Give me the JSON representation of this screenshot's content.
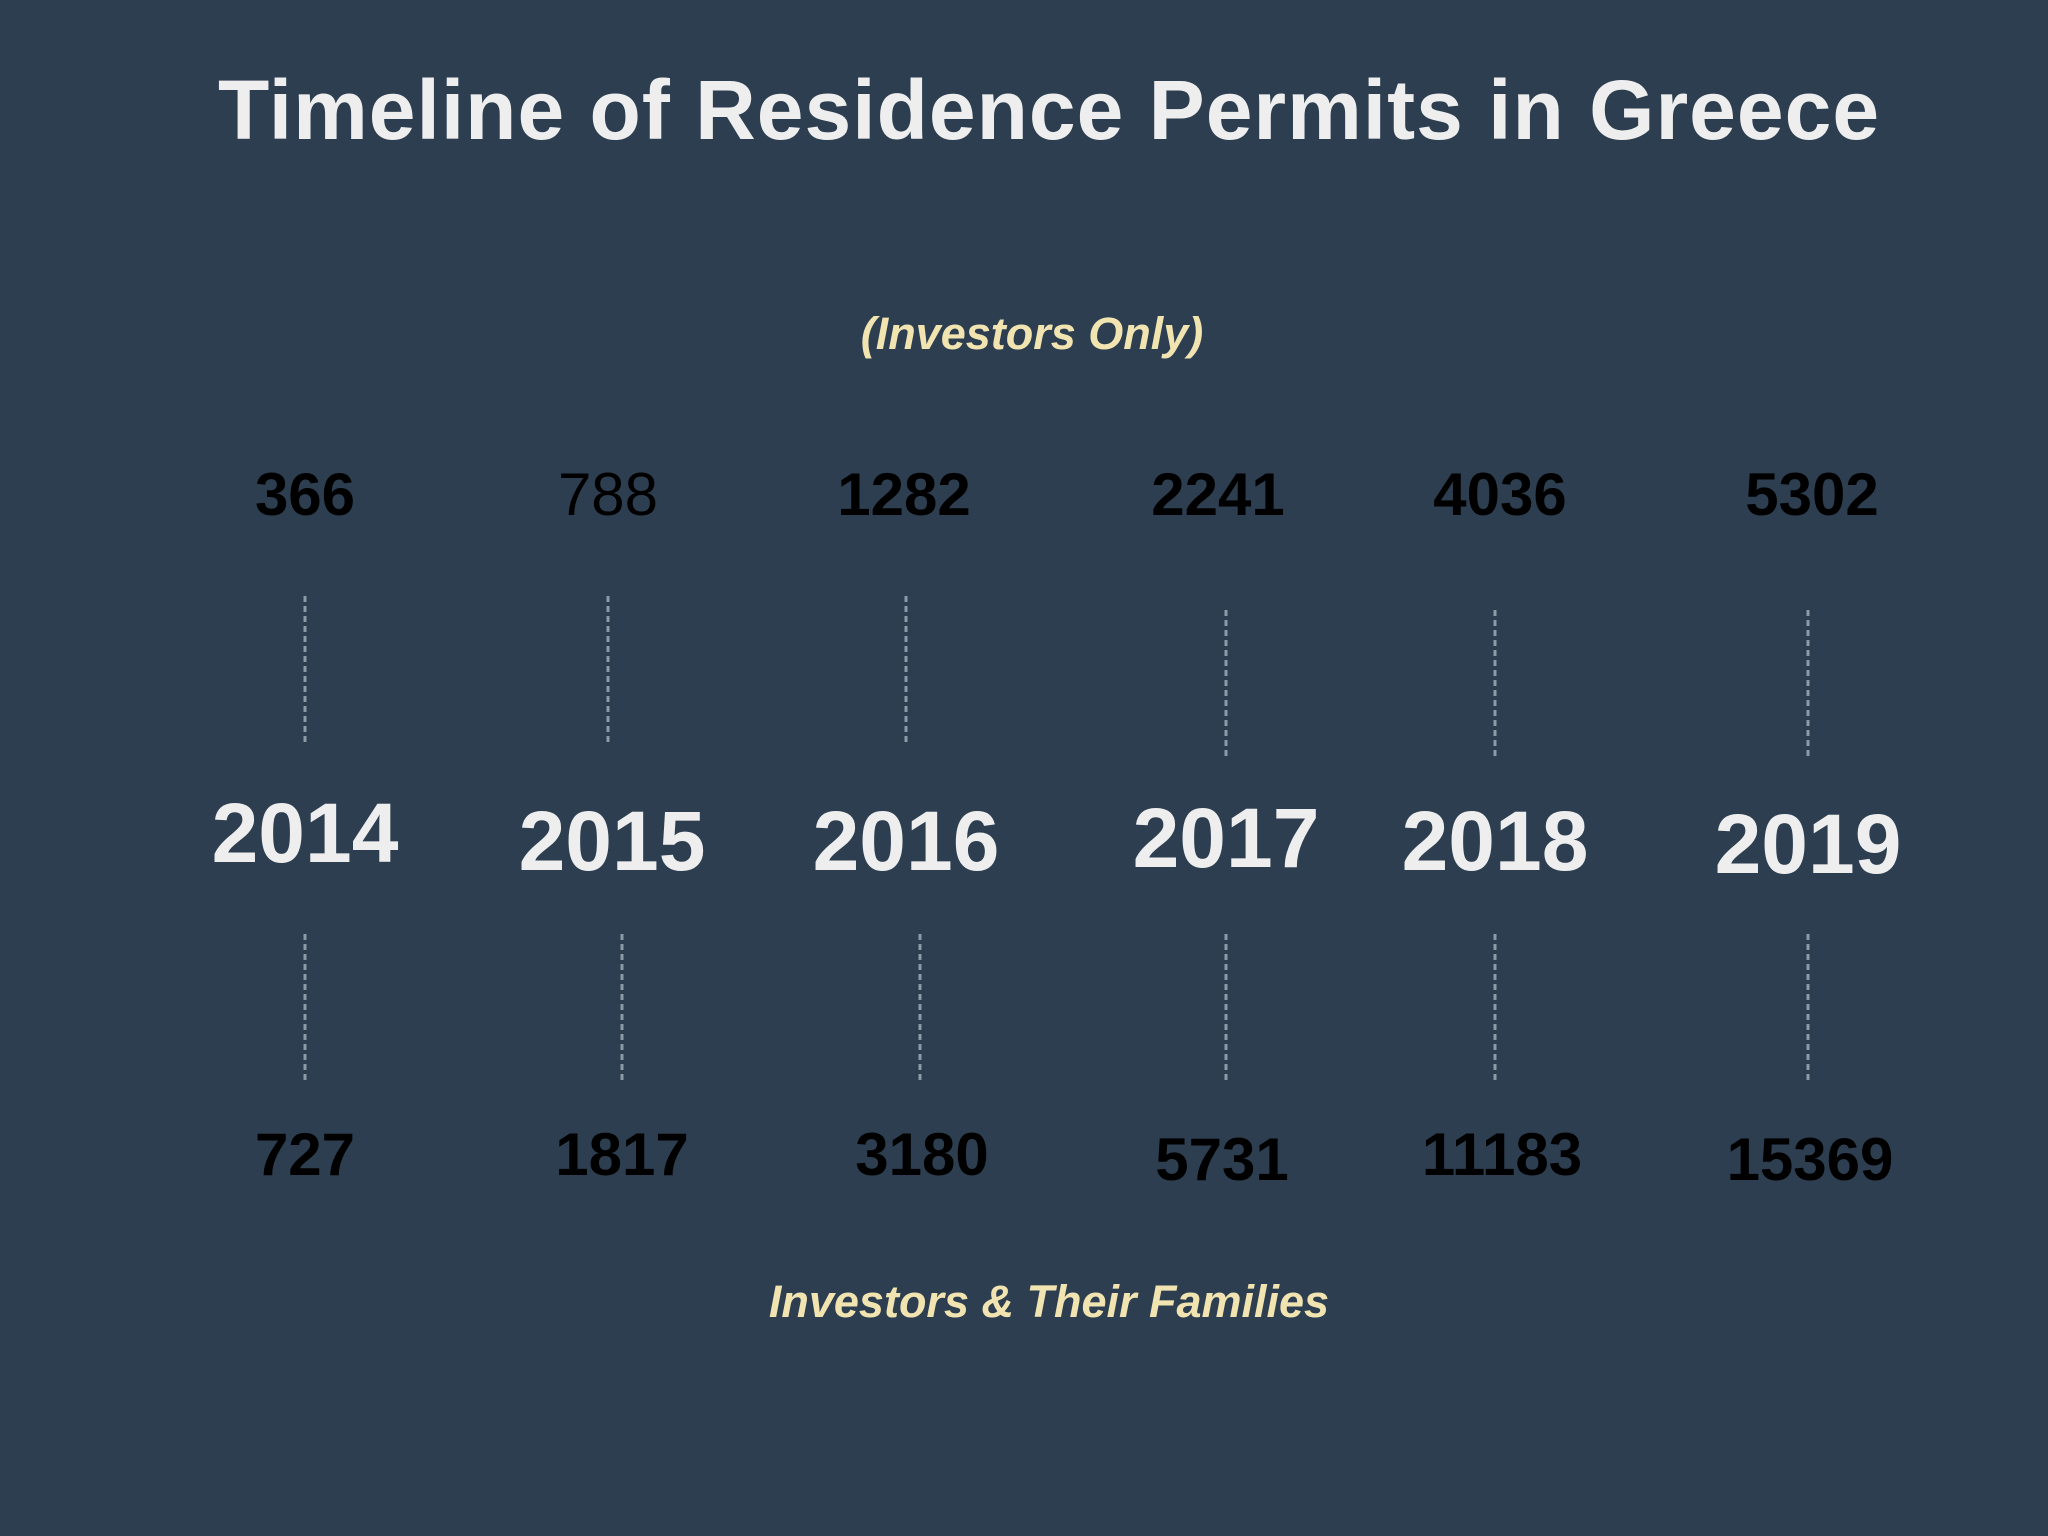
{
  "chart_data": {
    "type": "timeline",
    "title": "Timeline of Residence Permits in Greece",
    "top_label": "(Investors Only)",
    "bottom_label": "Investors & Their Families",
    "years": [
      "2014",
      "2015",
      "2016",
      "2017",
      "2018",
      "2019"
    ],
    "series": [
      {
        "name": "(Investors Only)",
        "values": [
          366,
          788,
          1282,
          2241,
          4036,
          5302
        ]
      },
      {
        "name": "Investors & Their Families",
        "values": [
          727,
          1817,
          3180,
          5731,
          11183,
          15369
        ]
      }
    ],
    "colors": {
      "background": "#2c3e50",
      "title": "#eeeeee",
      "label": "#f1e4b0",
      "value": "#000000",
      "connector": "#8e9aa6"
    }
  }
}
